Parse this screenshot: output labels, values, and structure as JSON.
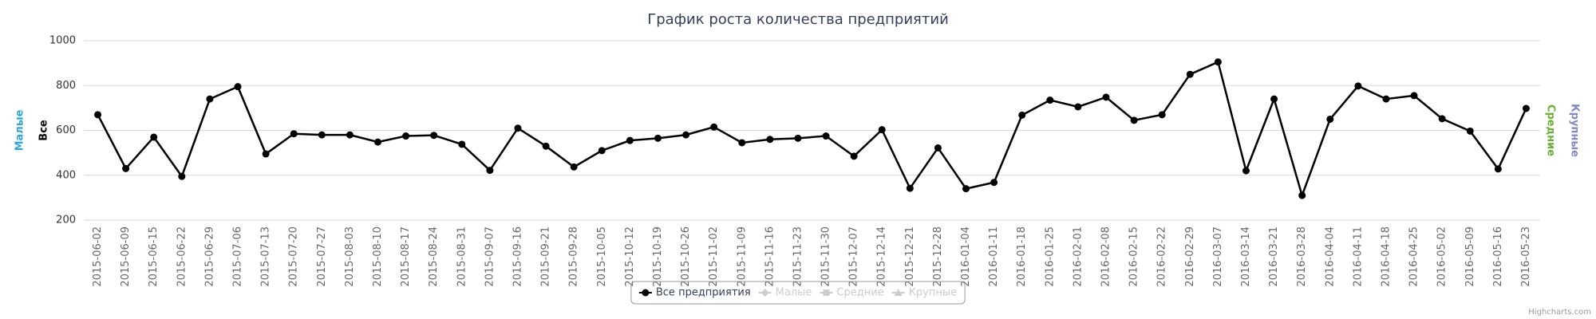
{
  "chart_data": {
    "type": "line",
    "title": "График роста количества предприятий",
    "categories": [
      "2015-06-02",
      "2015-06-09",
      "2015-06-15",
      "2015-06-22",
      "2015-06-29",
      "2015-07-06",
      "2015-07-13",
      "2015-07-20",
      "2015-07-27",
      "2015-08-03",
      "2015-08-10",
      "2015-08-17",
      "2015-08-24",
      "2015-08-31",
      "2015-09-07",
      "2015-09-16",
      "2015-09-21",
      "2015-09-28",
      "2015-10-05",
      "2015-10-12",
      "2015-10-19",
      "2015-10-26",
      "2015-11-02",
      "2015-11-09",
      "2015-11-16",
      "2015-11-23",
      "2015-11-30",
      "2015-12-07",
      "2015-12-14",
      "2015-12-21",
      "2015-12-28",
      "2016-01-04",
      "2016-01-11",
      "2016-01-18",
      "2016-01-25",
      "2016-02-01",
      "2016-02-08",
      "2016-02-15",
      "2016-02-22",
      "2016-02-29",
      "2016-03-07",
      "2016-03-14",
      "2016-03-21",
      "2016-03-28",
      "2016-04-04",
      "2016-04-11",
      "2016-04-18",
      "2016-04-25",
      "2016-05-02",
      "2016-05-09",
      "2016-05-16",
      "2016-05-23"
    ],
    "series": [
      {
        "name": "Все предприятия",
        "color": "#000000",
        "values": [
          670,
          430,
          570,
          395,
          740,
          795,
          495,
          585,
          580,
          580,
          548,
          575,
          578,
          538,
          422,
          610,
          530,
          437,
          510,
          555,
          565,
          580,
          615,
          545,
          560,
          565,
          575,
          485,
          603,
          342,
          522,
          340,
          368,
          668,
          735,
          705,
          748,
          645,
          670,
          850,
          905,
          420,
          740,
          310,
          650,
          798,
          740,
          755,
          652,
          597,
          428,
          698
        ]
      },
      {
        "name": "Малые",
        "visible": false
      },
      {
        "name": "Средние",
        "visible": false
      },
      {
        "name": "Крупные",
        "visible": false
      }
    ],
    "y_axes": [
      {
        "title": "Малые",
        "color": "#2ea4d9",
        "side": "left"
      },
      {
        "title": "Все",
        "color": "#000000",
        "side": "left"
      },
      {
        "title": "Средние",
        "color": "#6aaf35",
        "side": "right"
      },
      {
        "title": "Крупные",
        "color": "#8087c4",
        "side": "right"
      }
    ],
    "ylim": [
      200,
      1000
    ],
    "yticks": [
      200,
      400,
      600,
      800,
      1000
    ],
    "grid": true,
    "legend": "bottom",
    "credits": "Highcharts.com"
  }
}
